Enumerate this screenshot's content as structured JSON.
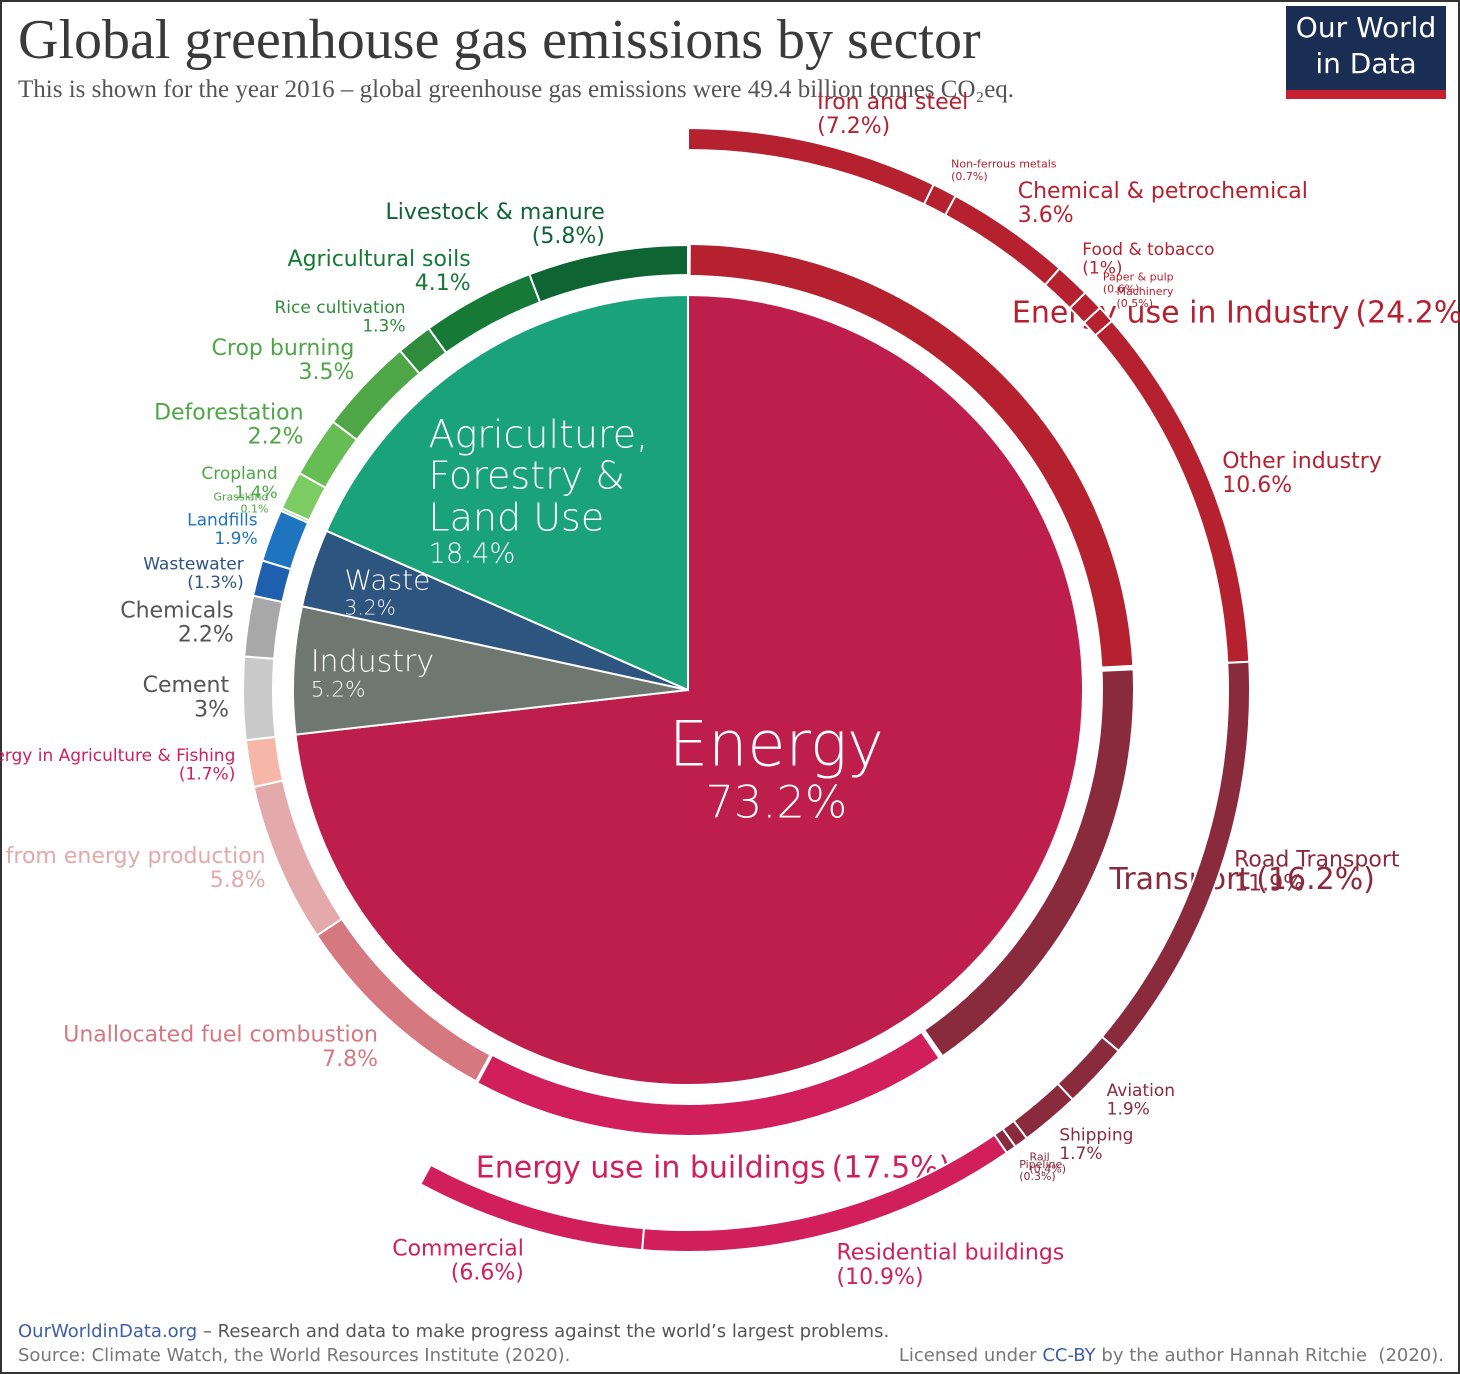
{
  "chart_data": {
    "type": "sunburst",
    "title": "Global greenhouse gas emissions by sector",
    "subtitle": "This is shown for the year 2016 – global greenhouse gas emissions were 49.4 billion tonnes CO₂eq.",
    "sectors": [
      {
        "name": "Energy",
        "value": 73.2,
        "value_label": "73.2%",
        "color": "#bd1e4b"
      },
      {
        "name": "Industry",
        "value": 5.2,
        "value_label": "5.2%",
        "color": "#6f7771"
      },
      {
        "name": "Waste",
        "value": 3.2,
        "value_label": "3.2%",
        "color": "#2e5480"
      },
      {
        "name": "Agriculture, Forestry & Land Use",
        "value": 18.4,
        "value_label": "18.4%",
        "color": "#1aa37a"
      }
    ],
    "groups": [
      {
        "name": "Energy use in Industry",
        "value": 24.2,
        "value_label": "(24.2%)",
        "color": "#b5212f"
      },
      {
        "name": "Transport",
        "value": 16.2,
        "value_label": "(16.2%)",
        "color": "#8a2a3d"
      },
      {
        "name": "Energy use in buildings",
        "value": 17.5,
        "value_label": "(17.5%)",
        "color": "#d01f5b"
      }
    ],
    "segments": [
      {
        "name": "Iron and steel",
        "value": 7.2,
        "value_label": "(7.2%)",
        "color": "#b5212f",
        "ring": "outer"
      },
      {
        "name": "Non-ferrous metals",
        "value": 0.7,
        "value_label": "(0.7%)",
        "color": "#b5212f",
        "ring": "outer"
      },
      {
        "name": "Chemical & petrochemical",
        "value": 3.6,
        "value_label": "3.6%",
        "color": "#b5212f",
        "ring": "outer"
      },
      {
        "name": "Food & tobacco",
        "value": 1,
        "value_label": "(1%)",
        "color": "#b5212f",
        "ring": "outer"
      },
      {
        "name": "Paper & pulp",
        "value": 0.6,
        "value_label": "(0.6%)",
        "color": "#b5212f",
        "ring": "outer"
      },
      {
        "name": "Machinery",
        "value": 0.5,
        "value_label": "(0.5%)",
        "color": "#b5212f",
        "ring": "outer"
      },
      {
        "name": "Other industry",
        "value": 10.6,
        "value_label": "10.6%",
        "color": "#b5212f",
        "ring": "outer"
      },
      {
        "name": "Road Transport",
        "value": 11.9,
        "value_label": "11.9%",
        "color": "#8a2a3d",
        "ring": "outer"
      },
      {
        "name": "Aviation",
        "value": 1.9,
        "value_label": "1.9%",
        "color": "#8a2a3d",
        "ring": "outer"
      },
      {
        "name": "Shipping",
        "value": 1.7,
        "value_label": "1.7%",
        "color": "#8a2a3d",
        "ring": "outer"
      },
      {
        "name": "Rail",
        "value": 0.4,
        "value_label": "(0.4%)",
        "color": "#8a2a3d",
        "ring": "outer"
      },
      {
        "name": "Pipeline",
        "value": 0.3,
        "value_label": "(0.3%)",
        "color": "#8a2a3d",
        "ring": "outer"
      },
      {
        "name": "Residential buildings",
        "value": 10.9,
        "value_label": "(10.9%)",
        "color": "#d01f5b",
        "ring": "outer"
      },
      {
        "name": "Commercial",
        "value": 6.6,
        "value_label": "(6.6%)",
        "color": "#d01f5b",
        "ring": "outer"
      },
      {
        "name": "Unallocated fuel combustion",
        "value": 7.8,
        "value_label": "7.8%",
        "color": "#d6787f",
        "ring": "middle"
      },
      {
        "name": "Fugitive emissions from energy production",
        "value": 5.8,
        "value_label": "5.8%",
        "color": "#e4a9aa",
        "ring": "middle"
      },
      {
        "name": "Energy in Agriculture & Fishing",
        "value": 1.7,
        "value_label": "(1.7%)",
        "color": "#f7b7a8",
        "label_color": "#d01f5b",
        "ring": "middle"
      },
      {
        "name": "Cement",
        "value": 3,
        "value_label": "3%",
        "color": "#c9c9c9",
        "label_color": "#555555",
        "ring": "middle"
      },
      {
        "name": "Chemicals",
        "value": 2.2,
        "value_label": "2.2%",
        "color": "#a8a8a8",
        "label_color": "#555555",
        "ring": "middle"
      },
      {
        "name": "Wastewater",
        "value": 1.3,
        "value_label": "(1.3%)",
        "color": "#1e5fae",
        "label_color": "#2e5480",
        "ring": "middle"
      },
      {
        "name": "Landfills",
        "value": 1.9,
        "value_label": "1.9%",
        "color": "#1f74c0",
        "ring": "middle"
      },
      {
        "name": "Grassland",
        "value": 0.1,
        "value_label": "0.1%",
        "color": "#7dcc63",
        "label_color": "#4ea646",
        "ring": "middle"
      },
      {
        "name": "Cropland",
        "value": 1.4,
        "value_label": "1.4%",
        "color": "#7dcc63",
        "label_color": "#4ea646",
        "ring": "middle"
      },
      {
        "name": "Deforestation",
        "value": 2.2,
        "value_label": "2.2%",
        "color": "#66bd54",
        "label_color": "#4ea646",
        "ring": "middle"
      },
      {
        "name": "Crop burning",
        "value": 3.5,
        "value_label": "3.5%",
        "color": "#4ea646",
        "ring": "middle"
      },
      {
        "name": "Rice cultivation",
        "value": 1.3,
        "value_label": "1.3%",
        "color": "#2f8c3c",
        "ring": "middle"
      },
      {
        "name": "Agricultural soils",
        "value": 4.1,
        "value_label": "4.1%",
        "color": "#167a36",
        "ring": "middle"
      },
      {
        "name": "Livestock & manure",
        "value": 5.8,
        "value_label": "(5.8%)",
        "color": "#0f6433",
        "ring": "middle"
      }
    ]
  },
  "logo": {
    "line1": "Our World",
    "line2": "in Data"
  },
  "footer": {
    "site": "OurWorldinData.org",
    "tagline": " – Research and data to make progress against the world’s largest problems.",
    "source": "Source: Climate Watch, the World Resources Institute (2020).",
    "license_prefix": "Licensed under ",
    "license_link": "CC-BY",
    "license_suffix": " by the author Hannah Ritchie  (2020)."
  }
}
